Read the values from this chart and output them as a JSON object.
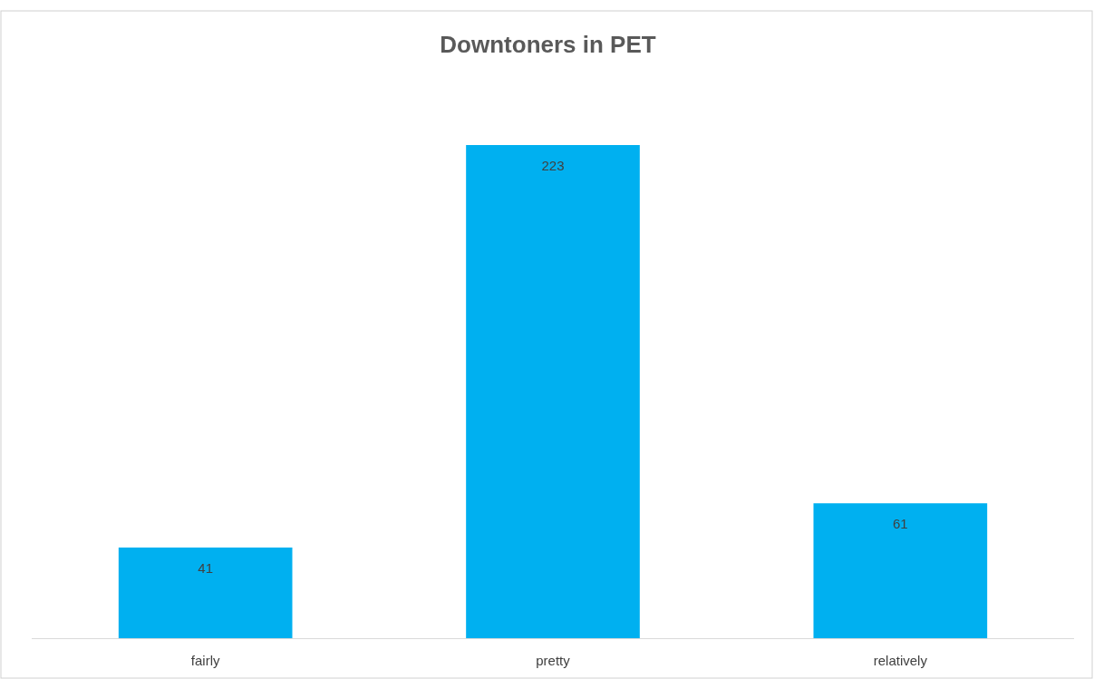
{
  "chart_data": {
    "type": "bar",
    "title": "Downtoners in PET",
    "categories": [
      "fairly",
      "pretty",
      "relatively"
    ],
    "values": [
      41,
      223,
      61
    ],
    "color": "#00b0f0",
    "data_labels": true
  }
}
